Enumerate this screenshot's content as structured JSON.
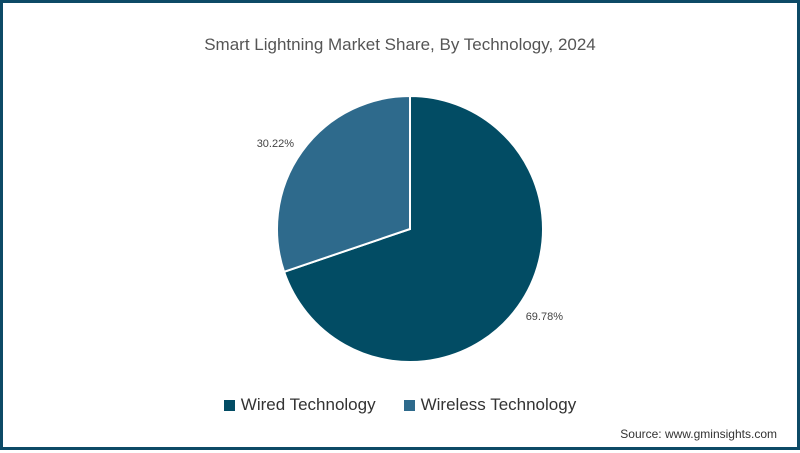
{
  "chart_data": {
    "type": "pie",
    "title": "Smart Lightning Market Share, By Technology, 2024",
    "slices": [
      {
        "label": "Wired Technology",
        "value": 69.78,
        "display": "69.78%",
        "color": "#024c64"
      },
      {
        "label": "Wireless Technology",
        "value": 30.22,
        "display": "30.22%",
        "color": "#2e6a8c"
      }
    ],
    "start_angle": "12 o'clock",
    "direction": "clockwise",
    "legend_position": "bottom"
  },
  "footer": {
    "source": "Source: www.gminsights.com"
  },
  "colors": {
    "border": "#0d4a66"
  }
}
